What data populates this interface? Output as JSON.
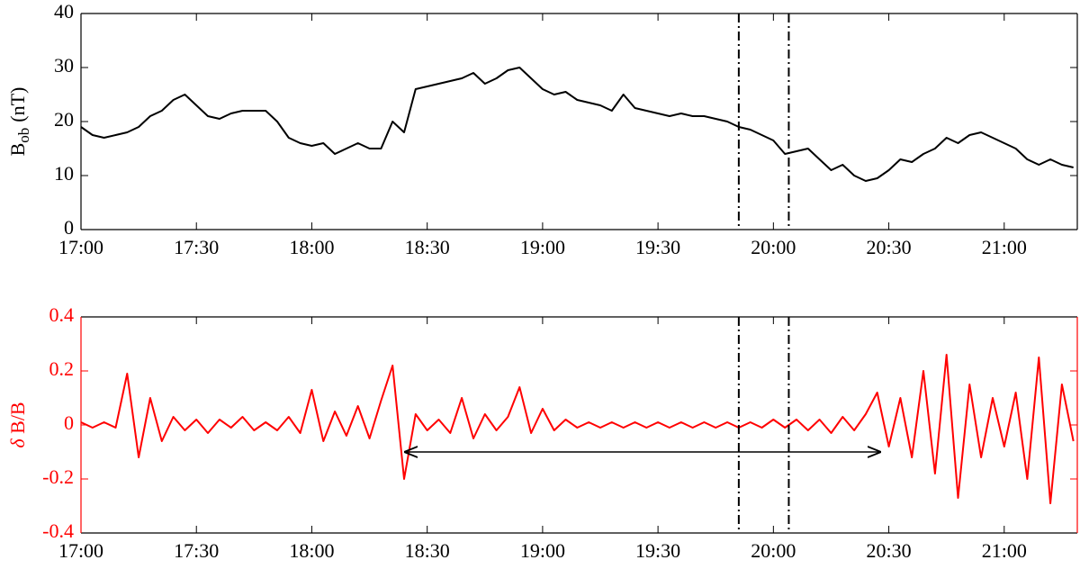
{
  "chart_data": [
    {
      "type": "line",
      "ylabel": [
        "B",
        "ob",
        "(nT)"
      ],
      "x": [
        "17:00",
        "17:03",
        "17:06",
        "17:09",
        "17:12",
        "17:15",
        "17:18",
        "17:21",
        "17:24",
        "17:27",
        "17:30",
        "17:33",
        "17:36",
        "17:39",
        "17:42",
        "17:45",
        "17:48",
        "17:51",
        "17:54",
        "17:57",
        "18:00",
        "18:03",
        "18:06",
        "18:09",
        "18:12",
        "18:15",
        "18:18",
        "18:21",
        "18:24",
        "18:27",
        "18:30",
        "18:33",
        "18:36",
        "18:39",
        "18:42",
        "18:45",
        "18:48",
        "18:51",
        "18:54",
        "18:57",
        "19:00",
        "19:03",
        "19:06",
        "19:09",
        "19:12",
        "19:15",
        "19:18",
        "19:21",
        "19:24",
        "19:27",
        "19:30",
        "19:33",
        "19:36",
        "19:39",
        "19:42",
        "19:45",
        "19:48",
        "19:51",
        "19:54",
        "19:57",
        "20:00",
        "20:03",
        "20:06",
        "20:09",
        "20:12",
        "20:15",
        "20:18",
        "20:21",
        "20:24",
        "20:27",
        "20:30",
        "20:33",
        "20:36",
        "20:39",
        "20:42",
        "20:45",
        "20:48",
        "20:51",
        "20:54",
        "20:57",
        "21:00",
        "21:03",
        "21:06",
        "21:09",
        "21:12",
        "21:15",
        "21:18"
      ],
      "series": [
        {
          "color": "#000000",
          "values": [
            19,
            17.5,
            17,
            17.5,
            18,
            19,
            21,
            22,
            24,
            25,
            23,
            21,
            20.5,
            21.5,
            22,
            22,
            22,
            20,
            17,
            16,
            15.5,
            16,
            14,
            15,
            16,
            15,
            15,
            20,
            18,
            26,
            26.5,
            27,
            27.5,
            28,
            29,
            27,
            28,
            29.5,
            30,
            28,
            26,
            25,
            25.5,
            24,
            23.5,
            23,
            22,
            25,
            22.5,
            22,
            21.5,
            21,
            21.5,
            21,
            21,
            20.5,
            20,
            19,
            18.5,
            17.5,
            16.5,
            14,
            14.5,
            15,
            13,
            11,
            12,
            10,
            9,
            9.5,
            11,
            13,
            12.5,
            14,
            15,
            17,
            16,
            17.5,
            18,
            17,
            16,
            15,
            13,
            12,
            13,
            12,
            11.5
          ]
        }
      ],
      "xlim": [
        "17:00",
        "21:19"
      ],
      "xticks": [
        "17:00",
        "17:30",
        "18:00",
        "18:30",
        "19:00",
        "19:30",
        "20:00",
        "20:30",
        "21:00"
      ],
      "ylim": [
        0,
        40
      ],
      "yticks": [
        0,
        10,
        20,
        30,
        40
      ],
      "axis_color": "#000000",
      "markers": [
        "19:51",
        "20:04"
      ]
    },
    {
      "type": "line",
      "ylabel": [
        "δ",
        " B/B"
      ],
      "x": [
        "17:00",
        "17:03",
        "17:06",
        "17:09",
        "17:12",
        "17:15",
        "17:18",
        "17:21",
        "17:24",
        "17:27",
        "17:30",
        "17:33",
        "17:36",
        "17:39",
        "17:42",
        "17:45",
        "17:48",
        "17:51",
        "17:54",
        "17:57",
        "18:00",
        "18:03",
        "18:06",
        "18:09",
        "18:12",
        "18:15",
        "18:18",
        "18:21",
        "18:24",
        "18:27",
        "18:30",
        "18:33",
        "18:36",
        "18:39",
        "18:42",
        "18:45",
        "18:48",
        "18:51",
        "18:54",
        "18:57",
        "19:00",
        "19:03",
        "19:06",
        "19:09",
        "19:12",
        "19:15",
        "19:18",
        "19:21",
        "19:24",
        "19:27",
        "19:30",
        "19:33",
        "19:36",
        "19:39",
        "19:42",
        "19:45",
        "19:48",
        "19:51",
        "19:54",
        "19:57",
        "20:00",
        "20:03",
        "20:06",
        "20:09",
        "20:12",
        "20:15",
        "20:18",
        "20:21",
        "20:24",
        "20:27",
        "20:30",
        "20:33",
        "20:36",
        "20:39",
        "20:42",
        "20:45",
        "20:48",
        "20:51",
        "20:54",
        "20:57",
        "21:00",
        "21:03",
        "21:06",
        "21:09",
        "21:12",
        "21:15",
        "21:18"
      ],
      "series": [
        {
          "color": "#ff0000",
          "values": [
            0.01,
            -0.01,
            0.01,
            -0.01,
            0.19,
            -0.12,
            0.1,
            -0.06,
            0.03,
            -0.02,
            0.02,
            -0.03,
            0.02,
            -0.01,
            0.03,
            -0.02,
            0.01,
            -0.02,
            0.03,
            -0.03,
            0.13,
            -0.06,
            0.05,
            -0.04,
            0.07,
            -0.05,
            0.09,
            0.22,
            -0.2,
            0.04,
            -0.02,
            0.02,
            -0.03,
            0.1,
            -0.05,
            0.04,
            -0.02,
            0.03,
            0.14,
            -0.03,
            0.06,
            -0.02,
            0.02,
            -0.01,
            0.01,
            -0.01,
            0.01,
            -0.01,
            0.01,
            -0.01,
            0.01,
            -0.01,
            0.01,
            -0.01,
            0.01,
            -0.01,
            0.01,
            -0.01,
            0.01,
            -0.01,
            0.02,
            -0.01,
            0.02,
            -0.02,
            0.02,
            -0.03,
            0.03,
            -0.02,
            0.04,
            0.12,
            -0.08,
            0.1,
            -0.12,
            0.2,
            -0.18,
            0.26,
            -0.27,
            0.15,
            -0.12,
            0.1,
            -0.08,
            0.12,
            -0.2,
            0.25,
            -0.29,
            0.15,
            -0.06
          ]
        }
      ],
      "xlim": [
        "17:00",
        "21:19"
      ],
      "xticks": [
        "17:00",
        "17:30",
        "18:00",
        "18:30",
        "19:00",
        "19:30",
        "20:00",
        "20:30",
        "21:00"
      ],
      "ylim": [
        -0.4,
        0.4
      ],
      "yticks": [
        -0.4,
        -0.2,
        0,
        0.2,
        0.4
      ],
      "axis_color": "#ff0000",
      "markers": [
        "19:51",
        "20:04"
      ],
      "arrow": {
        "x": [
          "18:24",
          "20:28"
        ],
        "y": -0.1
      }
    }
  ]
}
